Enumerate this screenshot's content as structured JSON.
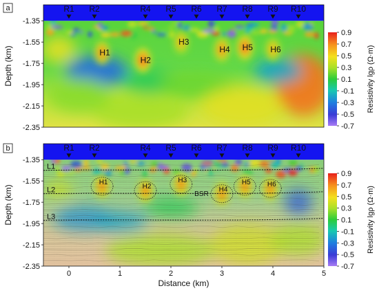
{
  "chart_data": [
    {
      "type": "heatmap",
      "panel_label": "a",
      "ylabel": "Depth (km)",
      "xlim": [
        -0.5,
        5
      ],
      "ylim": [
        -2.35,
        -1.2
      ],
      "seafloor_depth": -1.35,
      "yticks": [
        "-1.35",
        "-1.55",
        "-1.75",
        "-1.95",
        "-2.15",
        "-2.35"
      ],
      "receivers": [
        {
          "label": "R1",
          "x": 0
        },
        {
          "label": "R2",
          "x": 0.5
        },
        {
          "label": "R4",
          "x": 1.5
        },
        {
          "label": "R5",
          "x": 2.0
        },
        {
          "label": "R6",
          "x": 2.5
        },
        {
          "label": "R7",
          "x": 3.0
        },
        {
          "label": "R8",
          "x": 3.5
        },
        {
          "label": "R9",
          "x": 4.0
        },
        {
          "label": "R10",
          "x": 4.5
        }
      ],
      "anomalies": [
        {
          "label": "H1",
          "x": 0.65,
          "depth": -1.65,
          "value": 0.7
        },
        {
          "label": "H2",
          "x": 1.45,
          "depth": -1.72,
          "value": 0.8
        },
        {
          "label": "H3",
          "x": 2.2,
          "depth": -1.55,
          "value": 0.6
        },
        {
          "label": "H4",
          "x": 3.0,
          "depth": -1.62,
          "value": 0.7
        },
        {
          "label": "H5",
          "x": 3.45,
          "depth": -1.6,
          "value": 0.8
        },
        {
          "label": "H6",
          "x": 4.0,
          "depth": -1.62,
          "value": 0.6
        }
      ],
      "colorbar": {
        "label": "Resistivity lgρ (Ω·m)",
        "min": -0.7,
        "max": 0.9,
        "ticks": [
          "0.9",
          "0.7",
          "0.5",
          "0.3",
          "0.1",
          "-0.1",
          "-0.3",
          "-0.5",
          "-0.7"
        ]
      }
    },
    {
      "type": "heatmap",
      "panel_label": "b",
      "xlabel": "Distance (km)",
      "ylabel": "Depth (km)",
      "xlim": [
        -0.5,
        5
      ],
      "ylim": [
        -2.35,
        -1.2
      ],
      "seafloor_depth": -1.35,
      "xticks": [
        "0",
        "1",
        "2",
        "3",
        "4",
        "5"
      ],
      "yticks": [
        "-1.35",
        "-1.55",
        "-1.75",
        "-1.95",
        "-2.15",
        "-2.35"
      ],
      "receivers": [
        {
          "label": "R1",
          "x": 0
        },
        {
          "label": "R2",
          "x": 0.5
        },
        {
          "label": "R4",
          "x": 1.5
        },
        {
          "label": "R5",
          "x": 2.0
        },
        {
          "label": "R6",
          "x": 2.5
        },
        {
          "label": "R7",
          "x": 3.0
        },
        {
          "label": "R8",
          "x": 3.5
        },
        {
          "label": "R9",
          "x": 4.0
        },
        {
          "label": "R10",
          "x": 4.5
        }
      ],
      "anomalies": [
        {
          "label": "H1",
          "x": 0.65,
          "depth": -1.6
        },
        {
          "label": "H2",
          "x": 1.5,
          "depth": -1.64
        },
        {
          "label": "H3",
          "x": 2.2,
          "depth": -1.58
        },
        {
          "label": "H4",
          "x": 3.0,
          "depth": -1.67
        },
        {
          "label": "H5",
          "x": 3.45,
          "depth": -1.6
        },
        {
          "label": "H6",
          "x": 3.95,
          "depth": -1.62
        }
      ],
      "layers": [
        {
          "label": "L1",
          "depth": -1.45
        },
        {
          "label": "L2",
          "depth": -1.67
        },
        {
          "label": "L3",
          "depth": -1.92
        }
      ],
      "annotations": [
        {
          "label": "BSR",
          "x": 2.6,
          "depth": -1.69
        }
      ],
      "colorbar": {
        "label": "Resistivity lgρ (Ω·m)",
        "min": -0.7,
        "max": 0.9,
        "ticks": [
          "0.9",
          "0.7",
          "0.5",
          "0.3",
          "0.1",
          "-0.1",
          "-0.3",
          "-0.5",
          "-0.7"
        ]
      }
    }
  ]
}
